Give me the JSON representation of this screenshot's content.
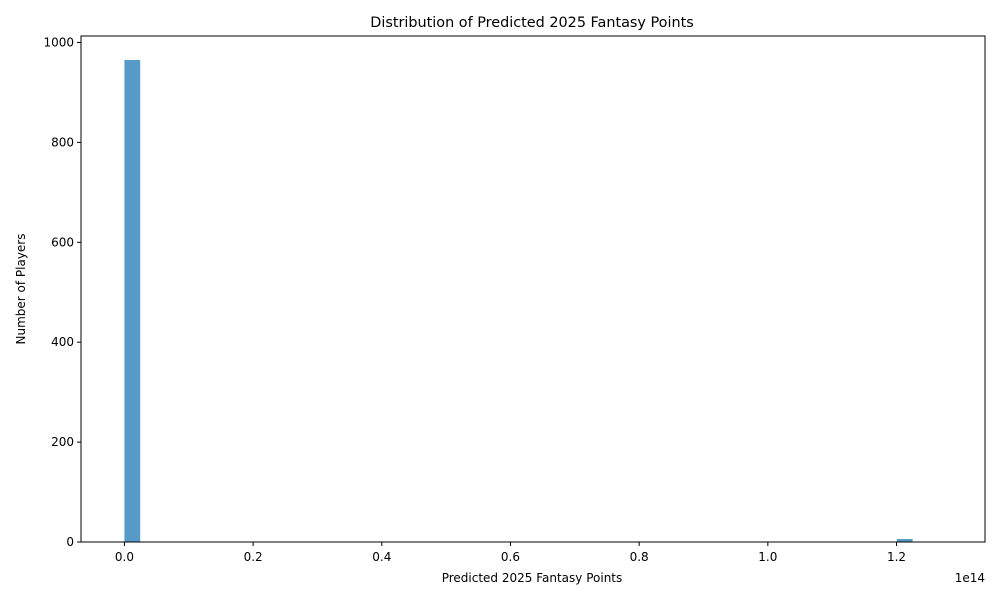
{
  "chart_data": {
    "type": "bar",
    "title": "Distribution of Predicted 2025 Fantasy Points",
    "xlabel": "Predicted 2025 Fantasy Points",
    "ylabel": "Number of Players",
    "x_offset_label": "1e14",
    "xlim": [
      -0.0675,
      1.3375
    ],
    "ylim": [
      0,
      1013
    ],
    "x_ticks": [
      {
        "value": 0.0,
        "label": "0.0"
      },
      {
        "value": 0.2,
        "label": "0.2"
      },
      {
        "value": 0.4,
        "label": "0.4"
      },
      {
        "value": 0.6,
        "label": "0.6"
      },
      {
        "value": 0.8,
        "label": "0.8"
      },
      {
        "value": 1.0,
        "label": "1.0"
      },
      {
        "value": 1.2,
        "label": "1.2"
      }
    ],
    "y_ticks": [
      {
        "value": 0,
        "label": "0"
      },
      {
        "value": 200,
        "label": "200"
      },
      {
        "value": 400,
        "label": "400"
      },
      {
        "value": 600,
        "label": "600"
      },
      {
        "value": 800,
        "label": "800"
      },
      {
        "value": 1000,
        "label": "1000"
      }
    ],
    "bins": [
      {
        "x0": 0.0,
        "x1": 0.0245,
        "count": 965
      },
      {
        "x0": 1.2005,
        "x1": 1.225,
        "count": 6
      }
    ],
    "grid": false,
    "bar_color": "#5799c7"
  }
}
